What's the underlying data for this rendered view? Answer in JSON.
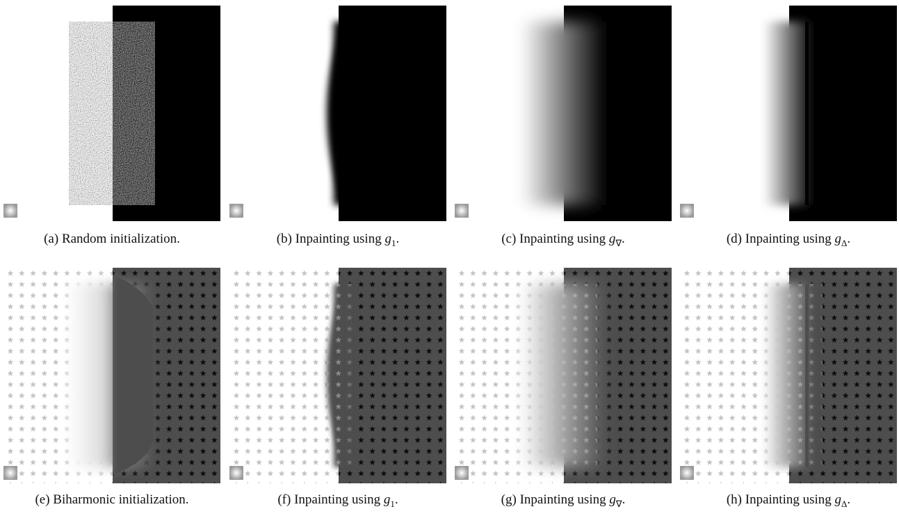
{
  "panels": [
    {
      "caption": {
        "text": "(a) Random initialization."
      }
    },
    {
      "caption": {
        "text": "(b) Inpainting using ",
        "var": "g",
        "sub": "1",
        "end": "."
      }
    },
    {
      "caption": {
        "text": "(c) Inpainting using ",
        "var": "g",
        "sub": "∇",
        "end": "."
      }
    },
    {
      "caption": {
        "text": "(d) Inpainting using ",
        "var": "g",
        "sub": "Δ",
        "end": "."
      }
    },
    {
      "caption": {
        "text": "(e) Biharmonic initialization."
      }
    },
    {
      "caption": {
        "text": "(f) Inpainting using ",
        "var": "g",
        "sub": "1",
        "end": "."
      }
    },
    {
      "caption": {
        "text": "(g) Inpainting using ",
        "var": "g",
        "sub": "∇",
        "end": "."
      }
    },
    {
      "caption": {
        "text": "(h) Inpainting using ",
        "var": "g",
        "sub": "Δ",
        "end": "."
      }
    }
  ]
}
